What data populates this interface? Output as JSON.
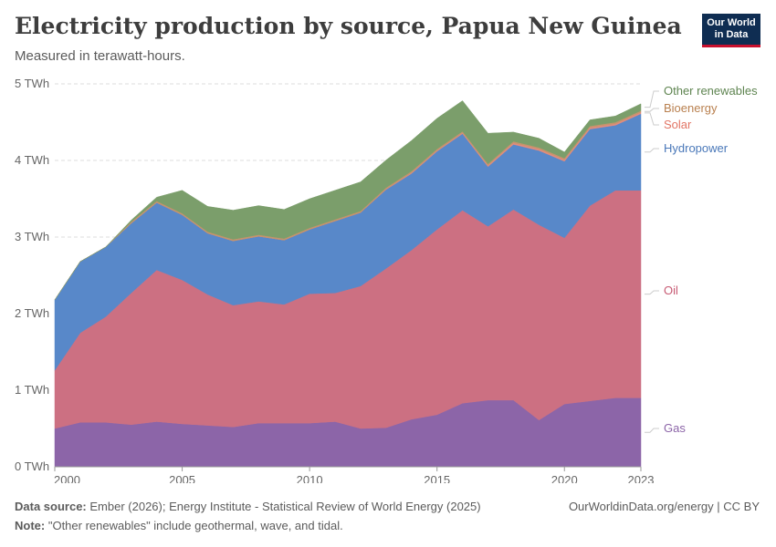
{
  "header": {
    "title": "Electricity production by source, Papua New Guinea",
    "subtitle": "Measured in terawatt-hours."
  },
  "logo": {
    "line1": "Our World",
    "line2": "in Data"
  },
  "footer": {
    "source_label": "Data source:",
    "source_text": "Ember (2026); Energy Institute - Statistical Review of World Energy (2025)",
    "note_label": "Note:",
    "note_text": "\"Other renewables\" include geothermal, wave, and tidal.",
    "credit": "OurWorldinData.org/energy | CC BY"
  },
  "chart_data": {
    "type": "area",
    "stacked": true,
    "x": [
      2000,
      2001,
      2002,
      2003,
      2004,
      2005,
      2006,
      2007,
      2008,
      2009,
      2010,
      2011,
      2012,
      2013,
      2014,
      2015,
      2016,
      2017,
      2018,
      2019,
      2020,
      2021,
      2022,
      2023
    ],
    "xticks": [
      2000,
      2005,
      2010,
      2015,
      2020,
      2023
    ],
    "ylim": [
      0,
      5
    ],
    "yticks": [
      0,
      1,
      2,
      3,
      4,
      5
    ],
    "ytick_labels": [
      "0 TWh",
      "1 TWh",
      "2 TWh",
      "3 TWh",
      "4 TWh",
      "5 TWh"
    ],
    "grid": true,
    "series": [
      {
        "name": "Gas",
        "color": "#8c65a8",
        "values": [
          0.5,
          0.58,
          0.58,
          0.55,
          0.59,
          0.56,
          0.54,
          0.52,
          0.57,
          0.57,
          0.57,
          0.59,
          0.5,
          0.51,
          0.62,
          0.68,
          0.83,
          0.87,
          0.87,
          0.61,
          0.82,
          0.86,
          0.9,
          0.9
        ]
      },
      {
        "name": "Oil",
        "color": "#cc7082",
        "values": [
          0.76,
          1.17,
          1.38,
          1.72,
          1.98,
          1.88,
          1.71,
          1.59,
          1.59,
          1.55,
          1.69,
          1.68,
          1.86,
          2.08,
          2.21,
          2.42,
          2.52,
          2.27,
          2.49,
          2.55,
          2.17,
          2.55,
          2.71,
          2.71
        ]
      },
      {
        "name": "Hydropower",
        "color": "#5888c9",
        "values": [
          0.92,
          0.93,
          0.91,
          0.91,
          0.88,
          0.85,
          0.8,
          0.84,
          0.85,
          0.84,
          0.84,
          0.94,
          0.96,
          1.03,
          1.0,
          1.02,
          1.0,
          0.78,
          0.85,
          0.97,
          1.0,
          1.0,
          0.85,
          1.0
        ]
      },
      {
        "name": "Solar",
        "color": "#e38b7d",
        "values": [
          0,
          0,
          0,
          0,
          0,
          0,
          0,
          0,
          0,
          0,
          0,
          0,
          0,
          0.005,
          0.01,
          0.01,
          0.01,
          0.015,
          0.02,
          0.02,
          0.02,
          0.02,
          0.02,
          0.02
        ]
      },
      {
        "name": "Bioenergy",
        "color": "#c5946b",
        "values": [
          0,
          0,
          0,
          0.02,
          0.02,
          0.02,
          0.02,
          0.02,
          0.02,
          0.02,
          0.02,
          0.02,
          0.02,
          0.02,
          0.02,
          0.02,
          0.02,
          0.02,
          0.02,
          0.02,
          0.02,
          0.02,
          0.02,
          0.02
        ]
      },
      {
        "name": "Other renewables",
        "color": "#7b9e6b",
        "values": [
          0,
          0,
          0,
          0.02,
          0.05,
          0.3,
          0.33,
          0.38,
          0.38,
          0.38,
          0.38,
          0.38,
          0.38,
          0.36,
          0.4,
          0.4,
          0.4,
          0.4,
          0.12,
          0.12,
          0.08,
          0.08,
          0.08,
          0.09
        ]
      }
    ]
  }
}
